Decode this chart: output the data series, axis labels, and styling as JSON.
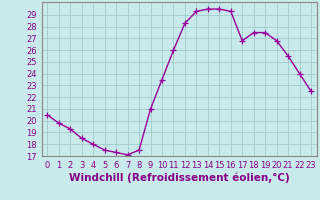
{
  "x": [
    0,
    1,
    2,
    3,
    4,
    5,
    6,
    7,
    8,
    9,
    10,
    11,
    12,
    13,
    14,
    15,
    16,
    17,
    18,
    19,
    20,
    21,
    22,
    23
  ],
  "y": [
    20.5,
    19.8,
    19.3,
    18.5,
    18.0,
    17.5,
    17.3,
    17.1,
    17.5,
    21.0,
    23.5,
    26.0,
    28.3,
    29.3,
    29.5,
    29.5,
    29.3,
    26.8,
    27.5,
    27.5,
    26.8,
    25.5,
    24.0,
    22.5
  ],
  "color": "#990099",
  "bg_color": "#c8eaea",
  "grid_color": "#a0cccc",
  "xlabel": "Windchill (Refroidissement éolien,°C)",
  "ylim": [
    17,
    30
  ],
  "xlim": [
    -0.5,
    23.5
  ],
  "yticks": [
    17,
    18,
    19,
    20,
    21,
    22,
    23,
    24,
    25,
    26,
    27,
    28,
    29
  ],
  "xticks": [
    0,
    1,
    2,
    3,
    4,
    5,
    6,
    7,
    8,
    9,
    10,
    11,
    12,
    13,
    14,
    15,
    16,
    17,
    18,
    19,
    20,
    21,
    22,
    23
  ],
  "marker": "+",
  "markersize": 4,
  "linewidth": 1.0,
  "xlabel_fontsize": 7.5,
  "tick_fontsize": 6,
  "label_color": "#880088",
  "spine_color": "#888888"
}
